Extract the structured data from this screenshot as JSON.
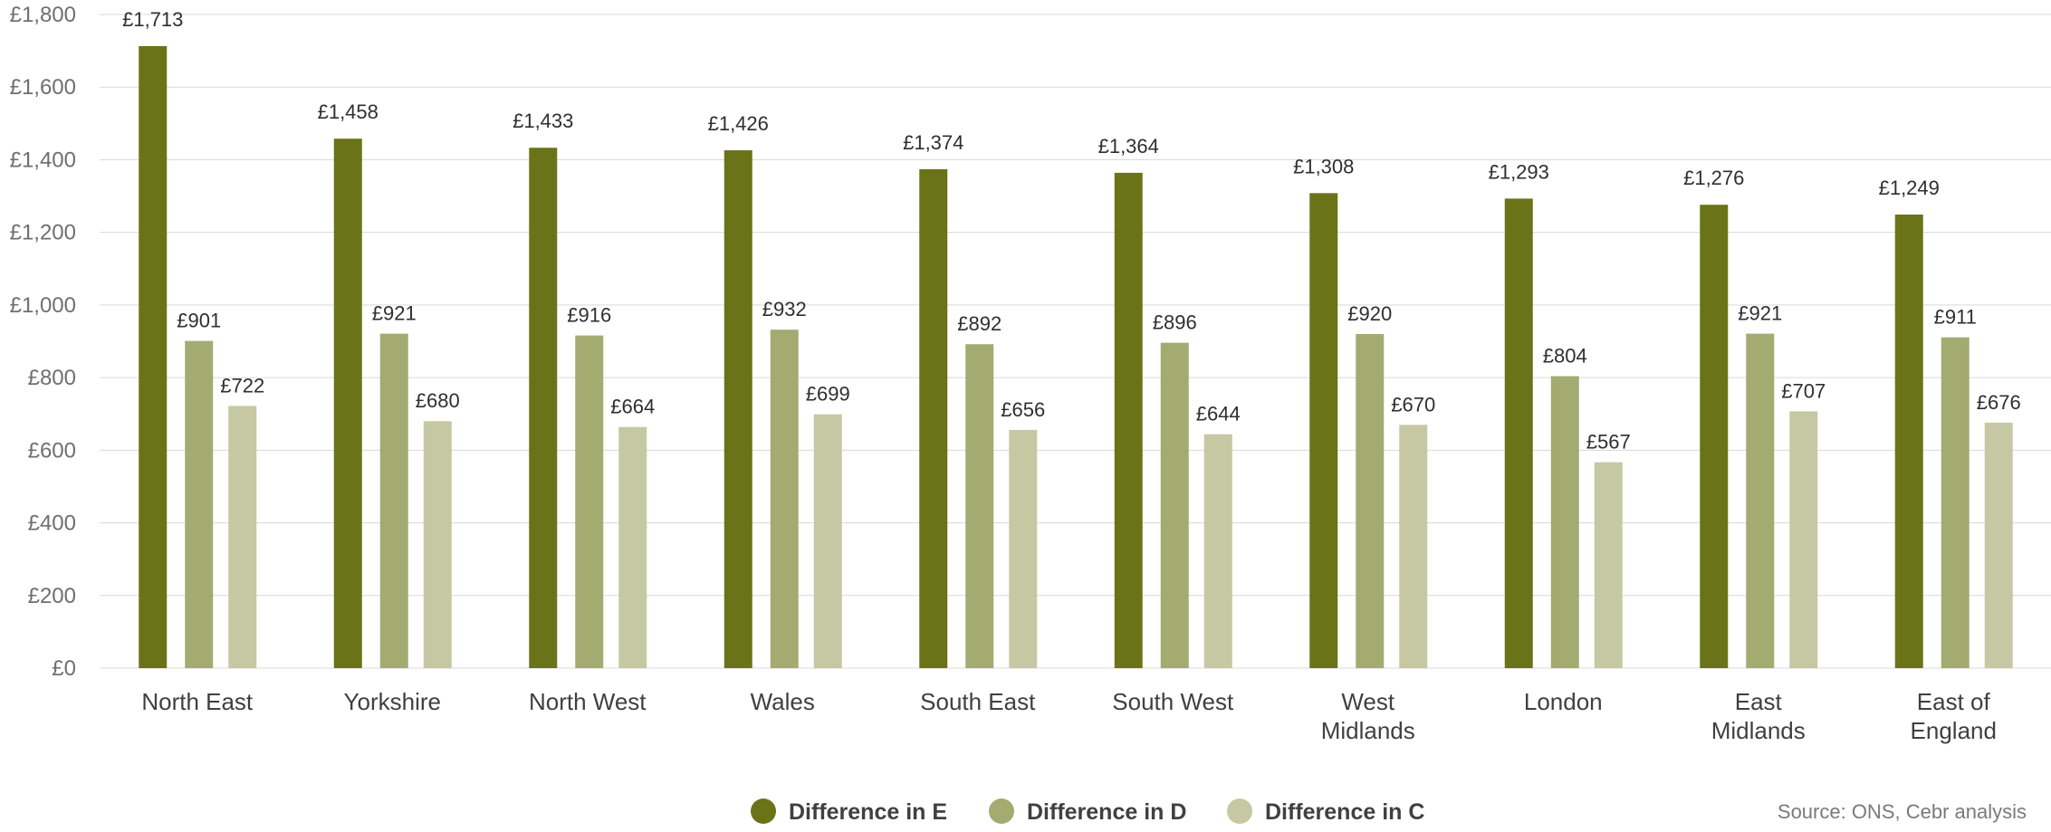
{
  "chart_data": {
    "type": "bar",
    "title": "",
    "xlabel": "",
    "ylabel": "",
    "ylim": [
      0,
      1800
    ],
    "yticks": [
      0,
      200,
      400,
      600,
      800,
      1000,
      1200,
      1400,
      1600,
      1800
    ],
    "ytick_labels": [
      "£0",
      "£200",
      "£400",
      "£600",
      "£800",
      "£1,000",
      "£1,200",
      "£1,400",
      "£1,600",
      "£1,800"
    ],
    "categories": [
      [
        "North East"
      ],
      [
        "Yorkshire"
      ],
      [
        "North West"
      ],
      [
        "Wales"
      ],
      [
        "South East"
      ],
      [
        "South West"
      ],
      [
        "West",
        "Midlands"
      ],
      [
        "London"
      ],
      [
        "East",
        "Midlands"
      ],
      [
        "East of",
        "England"
      ]
    ],
    "series": [
      {
        "name": "Difference in E",
        "color": "#6b7318",
        "values": [
          1713,
          1458,
          1433,
          1426,
          1374,
          1364,
          1308,
          1293,
          1276,
          1249
        ],
        "labels": [
          "£1,713",
          "£1,458",
          "£1,433",
          "£1,426",
          "£1,374",
          "£1,364",
          "£1,308",
          "£1,293",
          "£1,276",
          "£1,249"
        ]
      },
      {
        "name": "Difference in D",
        "color": "#a3ab71",
        "values": [
          901,
          921,
          916,
          932,
          892,
          896,
          920,
          804,
          921,
          911
        ],
        "labels": [
          "£901",
          "£921",
          "£916",
          "£932",
          "£892",
          "£896",
          "£920",
          "£804",
          "£921",
          "£911"
        ]
      },
      {
        "name": "Difference in C",
        "color": "#c5c8a2",
        "values": [
          722,
          680,
          664,
          699,
          656,
          644,
          670,
          567,
          707,
          676
        ],
        "labels": [
          "£722",
          "£680",
          "£664",
          "£699",
          "£656",
          "£644",
          "£670",
          "£567",
          "£707",
          "£676"
        ]
      }
    ],
    "grid": true,
    "legend_position": "bottom"
  },
  "footer": {
    "source": "Source: ONS, Cebr analysis"
  },
  "colors": {
    "grid": "#d9d9d9",
    "axis_text": "#6f6f6f",
    "category_text": "#404040",
    "value_text": "#2f2f2f"
  }
}
